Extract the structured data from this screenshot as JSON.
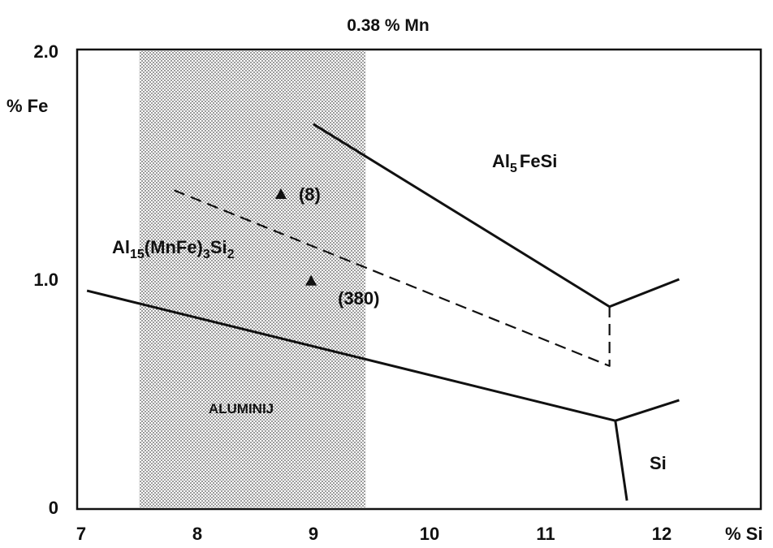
{
  "chart_data": {
    "type": "line",
    "title": "0.38 % Mn",
    "xlabel": "% Si",
    "ylabel": "% Fe",
    "xlim": [
      7,
      12.5
    ],
    "ylim": [
      0,
      2.0
    ],
    "x_ticks": [
      "7",
      "8",
      "9",
      "10",
      "11",
      "12"
    ],
    "y_ticks": [
      "0",
      "1.0",
      "2.0"
    ],
    "shaded_band": {
      "label": "ALUMINIJ",
      "x": [
        7.5,
        9.45
      ]
    },
    "series": [
      {
        "style": "solid",
        "x": [
          7.05,
          11.6
        ],
        "y": [
          0.95,
          0.38
        ]
      },
      {
        "style": "solid",
        "x": [
          9.0,
          11.55
        ],
        "y": [
          1.68,
          0.88
        ]
      },
      {
        "style": "dashed",
        "x": [
          7.8,
          11.55,
          11.55
        ],
        "y": [
          1.39,
          0.62,
          0.88
        ]
      },
      {
        "style": "solid",
        "x": [
          11.55,
          12.15
        ],
        "y": [
          0.88,
          1.0
        ]
      },
      {
        "style": "solid",
        "x": [
          11.6,
          12.15
        ],
        "y": [
          0.38,
          0.47
        ]
      },
      {
        "style": "solid",
        "x": [
          11.6,
          11.7
        ],
        "y": [
          0.38,
          0.03
        ]
      }
    ],
    "points": [
      {
        "label": "(8)",
        "x": 8.72,
        "y": 1.37
      },
      {
        "label": "(380)",
        "x": 8.98,
        "y": 0.99
      }
    ],
    "region_labels": {
      "al5fesi": {
        "base": "Al",
        "sub1": "5",
        "rest": "FeSi"
      },
      "al15": {
        "base": "Al",
        "sub1": "15",
        "mid": "(MnFe)",
        "sub2": "3",
        "rest": "Si",
        "sub3": "2"
      },
      "si": "Si"
    },
    "grid": false,
    "legend": "none"
  }
}
